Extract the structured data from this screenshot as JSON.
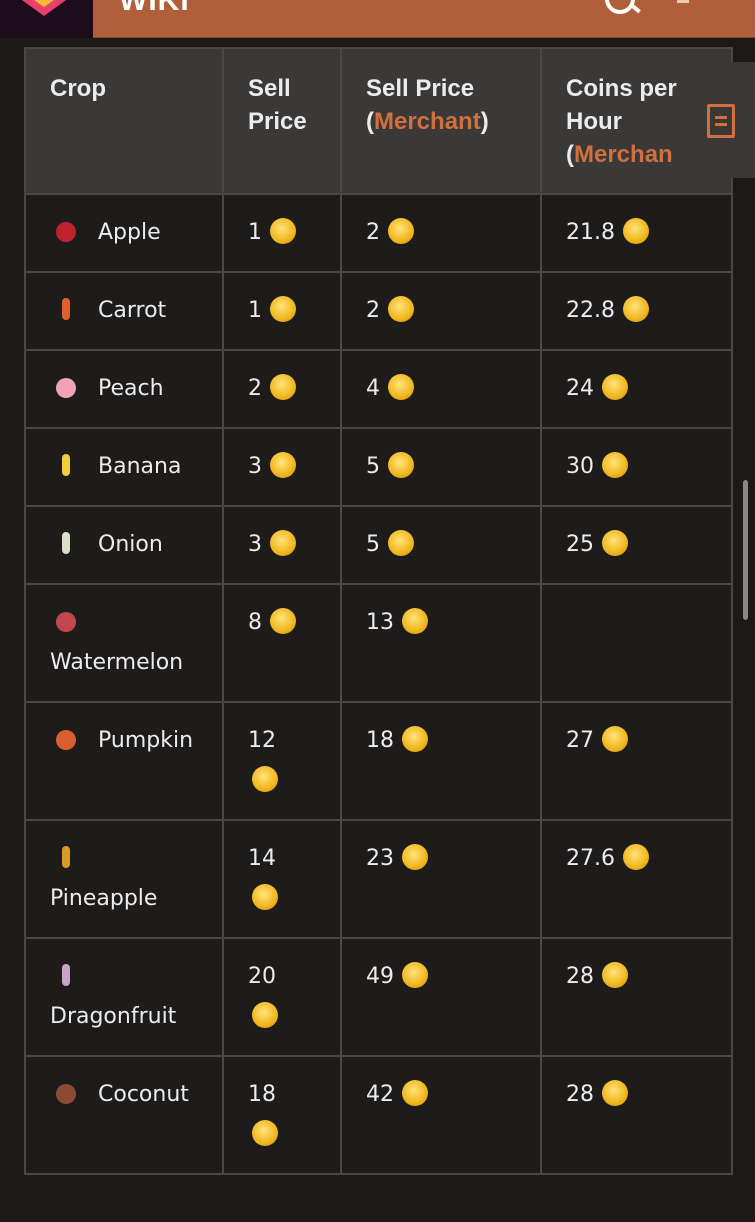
{
  "topbar": {
    "title": "WIKI",
    "search_icon": "search-icon",
    "user_icon": "user-icon",
    "brand_color": "#b15e3b"
  },
  "table": {
    "headers": [
      {
        "text": "Crop"
      },
      {
        "text": "Sell Price"
      },
      {
        "text": "Sell Price (",
        "accent": "Merchant",
        "after": ")"
      },
      {
        "text": "Coins per Hour (",
        "accent": "Merchan",
        "after": ""
      }
    ],
    "accent_color": "#d0703f",
    "rows": [
      {
        "crop": "Apple",
        "icon_color": "#c0232f",
        "sell": "1",
        "sell_merchant": "2",
        "coins_per_hour": "21.8"
      },
      {
        "crop": "Carrot",
        "icon_color": "#e0622a",
        "slim": true,
        "sell": "1",
        "sell_merchant": "2",
        "coins_per_hour": "22.8"
      },
      {
        "crop": "Peach",
        "icon_color": "#f0a3b4",
        "sell": "2",
        "sell_merchant": "4",
        "coins_per_hour": "24"
      },
      {
        "crop": "Banana",
        "icon_color": "#f1cf3b",
        "slim": true,
        "sell": "3",
        "sell_merchant": "5",
        "coins_per_hour": "30"
      },
      {
        "crop": "Onion",
        "icon_color": "#d9e2c8",
        "slim": true,
        "sell": "3",
        "sell_merchant": "5",
        "coins_per_hour": "25"
      },
      {
        "crop": "Watermelon",
        "icon_color": "#c2474d",
        "sell": "8",
        "sell_merchant": "13",
        "coins_per_hour": ""
      },
      {
        "crop": "Pumpkin",
        "icon_color": "#d9602e",
        "sell": "12",
        "sell_merchant": "18",
        "coins_per_hour": "27"
      },
      {
        "crop": "Pineapple",
        "icon_color": "#d99a2b",
        "slim": true,
        "sell": "14",
        "sell_merchant": "23",
        "coins_per_hour": "27.6"
      },
      {
        "crop": "Dragonfruit",
        "icon_color": "#c9a4c8",
        "slim": true,
        "sell": "20",
        "sell_merchant": "49",
        "coins_per_hour": "28"
      },
      {
        "crop": "Coconut",
        "icon_color": "#8a4a33",
        "sell": "18",
        "sell_merchant": "42",
        "coins_per_hour": "28"
      }
    ]
  },
  "fab": {
    "icon": "table-of-contents-icon"
  }
}
